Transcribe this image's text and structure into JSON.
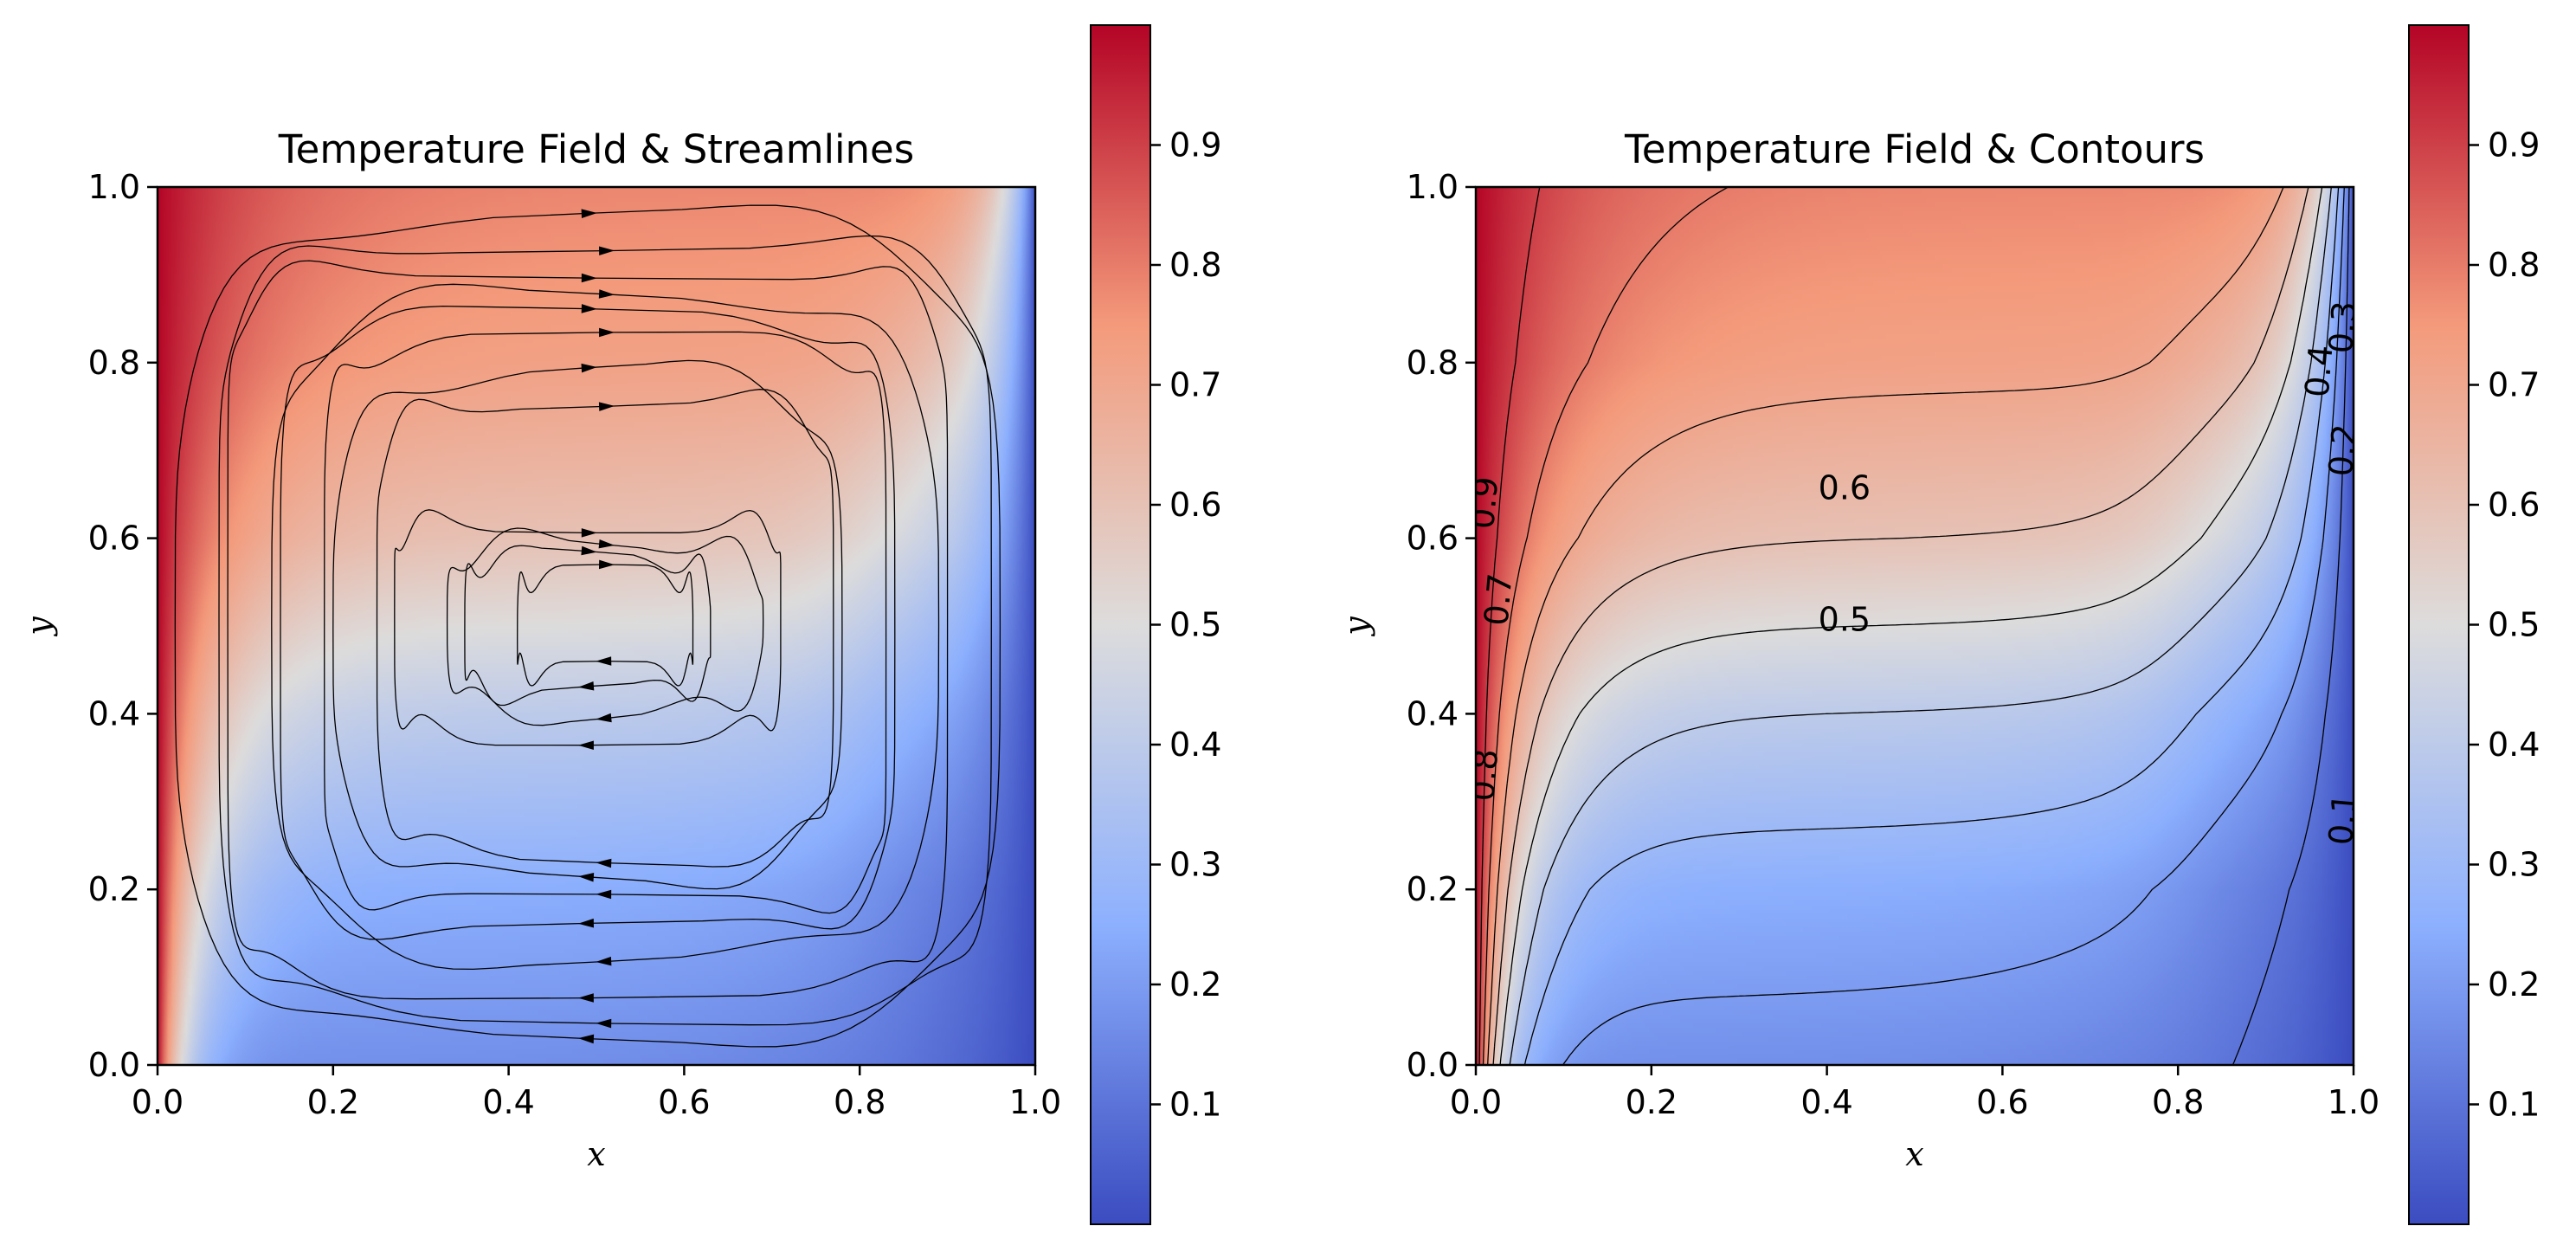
{
  "chart_data": [
    {
      "type": "heatmap",
      "overlay": "streamlines",
      "title": "Temperature Field & Streamlines",
      "xlabel": "x",
      "ylabel": "y",
      "xlim": [
        0,
        1
      ],
      "ylim": [
        0,
        1
      ],
      "xticks": [
        "0.0",
        "0.2",
        "0.4",
        "0.6",
        "0.8",
        "1.0"
      ],
      "yticks": [
        "0.0",
        "0.2",
        "0.4",
        "0.6",
        "0.8",
        "1.0"
      ],
      "colormap": "coolwarm",
      "colorbar": {
        "range": [
          0.0,
          1.0
        ],
        "ticks": [
          "0.1",
          "0.2",
          "0.3",
          "0.4",
          "0.5",
          "0.6",
          "0.7",
          "0.8",
          "0.9"
        ]
      },
      "field": {
        "left_wall_T": 1.0,
        "right_wall_T": 0.0,
        "stratified_profile": [
          [
            0.0,
            0.17
          ],
          [
            0.2,
            0.25
          ],
          [
            0.4,
            0.4
          ],
          [
            0.5,
            0.5
          ],
          [
            0.6,
            0.6
          ],
          [
            0.8,
            0.72
          ],
          [
            1.0,
            0.78
          ]
        ]
      },
      "circulation": "clockwise",
      "grid": false
    },
    {
      "type": "heatmap",
      "overlay": "contours",
      "title": "Temperature Field & Contours",
      "xlabel": "x",
      "ylabel": "y",
      "xlim": [
        0,
        1
      ],
      "ylim": [
        0,
        1
      ],
      "xticks": [
        "0.0",
        "0.2",
        "0.4",
        "0.6",
        "0.8",
        "1.0"
      ],
      "yticks": [
        "0.0",
        "0.2",
        "0.4",
        "0.6",
        "0.8",
        "1.0"
      ],
      "colormap": "coolwarm",
      "colorbar": {
        "range": [
          0.0,
          1.0
        ],
        "ticks": [
          "0.1",
          "0.2",
          "0.3",
          "0.4",
          "0.5",
          "0.6",
          "0.7",
          "0.8",
          "0.9"
        ]
      },
      "contour_levels": [
        0.1,
        0.2,
        0.3,
        0.4,
        0.5,
        0.6,
        0.7,
        0.8,
        0.9
      ],
      "contour_labels": [
        {
          "text": "0.6",
          "x": 0.42,
          "y": 0.655
        },
        {
          "text": "0.5",
          "x": 0.42,
          "y": 0.505
        },
        {
          "text": "0.7",
          "x": 0.028,
          "y": 0.53
        },
        {
          "text": "0.8",
          "x": 0.012,
          "y": 0.33
        },
        {
          "text": "0.9",
          "x": 0.012,
          "y": 0.64
        },
        {
          "text": "0.4",
          "x": 0.963,
          "y": 0.79
        },
        {
          "text": "0.3",
          "x": 0.99,
          "y": 0.84
        },
        {
          "text": "0.2",
          "x": 0.99,
          "y": 0.7
        },
        {
          "text": "0.1",
          "x": 0.99,
          "y": 0.28
        }
      ],
      "grid": false
    }
  ]
}
